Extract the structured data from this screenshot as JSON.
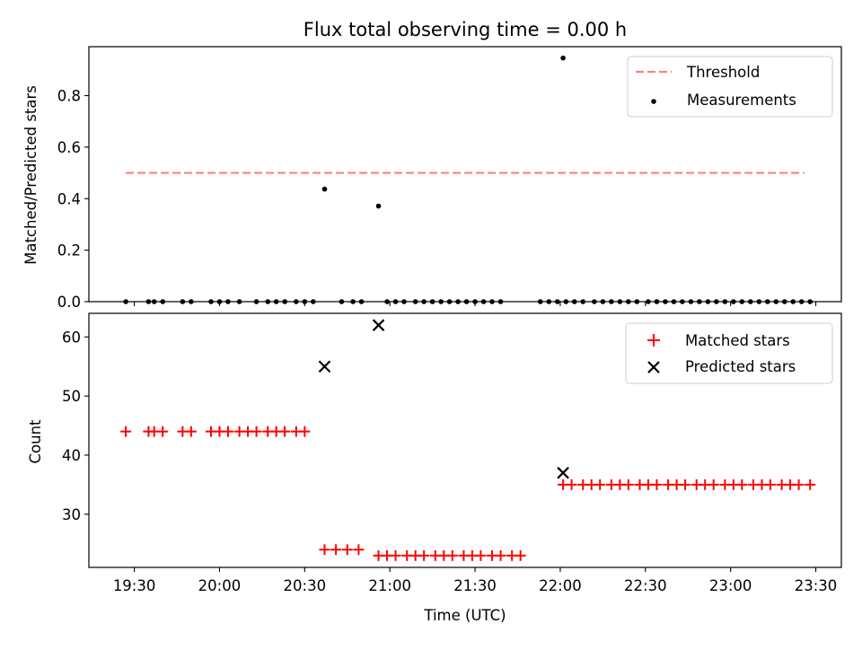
{
  "chart_data": [
    {
      "type": "scatter",
      "title": "Flux total observing time = 0.00 h",
      "xlabel": "",
      "ylabel": "Matched/Predicted stars",
      "xlim": [
        1154.0,
        1419.0
      ],
      "ylim": [
        0.0,
        0.99
      ],
      "yticks": [
        0.0,
        0.2,
        0.4,
        0.6,
        0.8
      ],
      "grid": false,
      "legend_position": "top-right",
      "series": [
        {
          "name": "Threshold",
          "kind": "dashed-line",
          "color": "#ff7f7f",
          "points": [
            [
              1167,
              0.5
            ],
            [
              1406,
              0.5
            ]
          ]
        },
        {
          "name": "Measurements",
          "kind": "scatter",
          "color": "#000000",
          "points": [
            [
              1167,
              0.0
            ],
            [
              1175,
              0.0
            ],
            [
              1177,
              0.0
            ],
            [
              1180,
              0.0
            ],
            [
              1187,
              0.0
            ],
            [
              1190,
              0.0
            ],
            [
              1197,
              0.0
            ],
            [
              1200,
              0.0
            ],
            [
              1203,
              0.0
            ],
            [
              1207,
              0.0
            ],
            [
              1213,
              0.0
            ],
            [
              1217,
              0.0
            ],
            [
              1220,
              0.0
            ],
            [
              1223,
              0.0
            ],
            [
              1227,
              0.0
            ],
            [
              1230,
              0.0
            ],
            [
              1233,
              0.0
            ],
            [
              1237,
              0.437
            ],
            [
              1243,
              0.0
            ],
            [
              1247,
              0.0
            ],
            [
              1250,
              0.0
            ],
            [
              1256,
              0.371
            ],
            [
              1259,
              0.0
            ],
            [
              1262,
              0.0
            ],
            [
              1265,
              0.0
            ],
            [
              1269,
              0.0
            ],
            [
              1272,
              0.0
            ],
            [
              1275,
              0.0
            ],
            [
              1278,
              0.0
            ],
            [
              1281,
              0.0
            ],
            [
              1284,
              0.0
            ],
            [
              1287,
              0.0
            ],
            [
              1290,
              0.0
            ],
            [
              1293,
              0.0
            ],
            [
              1296,
              0.0
            ],
            [
              1299,
              0.0
            ],
            [
              1321,
              0.946
            ],
            [
              1313,
              0.0
            ],
            [
              1316,
              0.0
            ],
            [
              1319,
              0.0
            ],
            [
              1322,
              0.0
            ],
            [
              1325,
              0.0
            ],
            [
              1328,
              0.0
            ],
            [
              1332,
              0.0
            ],
            [
              1335,
              0.0
            ],
            [
              1338,
              0.0
            ],
            [
              1341,
              0.0
            ],
            [
              1344,
              0.0
            ],
            [
              1347,
              0.0
            ],
            [
              1351,
              0.0
            ],
            [
              1354,
              0.0
            ],
            [
              1357,
              0.0
            ],
            [
              1360,
              0.0
            ],
            [
              1363,
              0.0
            ],
            [
              1366,
              0.0
            ],
            [
              1369,
              0.0
            ],
            [
              1372,
              0.0
            ],
            [
              1375,
              0.0
            ],
            [
              1378,
              0.0
            ],
            [
              1381,
              0.0
            ],
            [
              1384,
              0.0
            ],
            [
              1387,
              0.0
            ],
            [
              1390,
              0.0
            ],
            [
              1393,
              0.0
            ],
            [
              1396,
              0.0
            ],
            [
              1399,
              0.0
            ],
            [
              1402,
              0.0
            ],
            [
              1405,
              0.0
            ],
            [
              1408,
              0.0
            ]
          ]
        }
      ]
    },
    {
      "type": "scatter",
      "title": "",
      "xlabel": "Time (UTC)",
      "ylabel": "Count",
      "xlim": [
        1154.0,
        1419.0
      ],
      "ylim": [
        21.0,
        64.0
      ],
      "yticks": [
        30,
        40,
        50,
        60
      ],
      "xticks": [
        {
          "value": 1170,
          "label": "19:30"
        },
        {
          "value": 1200,
          "label": "20:00"
        },
        {
          "value": 1230,
          "label": "20:30"
        },
        {
          "value": 1260,
          "label": "21:00"
        },
        {
          "value": 1290,
          "label": "21:30"
        },
        {
          "value": 1320,
          "label": "22:00"
        },
        {
          "value": 1350,
          "label": "22:30"
        },
        {
          "value": 1380,
          "label": "23:00"
        },
        {
          "value": 1410,
          "label": "23:30"
        }
      ],
      "grid": false,
      "legend_position": "top-right",
      "series": [
        {
          "name": "Matched stars",
          "kind": "plus",
          "color": "#ff0000",
          "points": [
            [
              1167,
              44
            ],
            [
              1175,
              44
            ],
            [
              1177,
              44
            ],
            [
              1180,
              44
            ],
            [
              1187,
              44
            ],
            [
              1190,
              44
            ],
            [
              1197,
              44
            ],
            [
              1200,
              44
            ],
            [
              1203,
              44
            ],
            [
              1207,
              44
            ],
            [
              1210,
              44
            ],
            [
              1213,
              44
            ],
            [
              1217,
              44
            ],
            [
              1220,
              44
            ],
            [
              1223,
              44
            ],
            [
              1227,
              44
            ],
            [
              1230,
              44
            ],
            [
              1237,
              24
            ],
            [
              1241,
              24
            ],
            [
              1245,
              24
            ],
            [
              1249,
              24
            ],
            [
              1256,
              23
            ],
            [
              1259,
              23
            ],
            [
              1262,
              23
            ],
            [
              1266,
              23
            ],
            [
              1269,
              23
            ],
            [
              1272,
              23
            ],
            [
              1276,
              23
            ],
            [
              1279,
              23
            ],
            [
              1282,
              23
            ],
            [
              1286,
              23
            ],
            [
              1289,
              23
            ],
            [
              1292,
              23
            ],
            [
              1296,
              23
            ],
            [
              1299,
              23
            ],
            [
              1303,
              23
            ],
            [
              1306,
              23
            ],
            [
              1321,
              35
            ],
            [
              1324,
              35
            ],
            [
              1328,
              35
            ],
            [
              1331,
              35
            ],
            [
              1334,
              35
            ],
            [
              1338,
              35
            ],
            [
              1341,
              35
            ],
            [
              1344,
              35
            ],
            [
              1348,
              35
            ],
            [
              1351,
              35
            ],
            [
              1354,
              35
            ],
            [
              1358,
              35
            ],
            [
              1361,
              35
            ],
            [
              1364,
              35
            ],
            [
              1368,
              35
            ],
            [
              1371,
              35
            ],
            [
              1374,
              35
            ],
            [
              1378,
              35
            ],
            [
              1381,
              35
            ],
            [
              1384,
              35
            ],
            [
              1388,
              35
            ],
            [
              1391,
              35
            ],
            [
              1394,
              35
            ],
            [
              1398,
              35
            ],
            [
              1401,
              35
            ],
            [
              1404,
              35
            ],
            [
              1408,
              35
            ]
          ]
        },
        {
          "name": "Predicted stars",
          "kind": "x",
          "color": "#000000",
          "points": [
            [
              1237,
              55
            ],
            [
              1256,
              62
            ],
            [
              1321,
              37
            ]
          ]
        }
      ]
    }
  ]
}
